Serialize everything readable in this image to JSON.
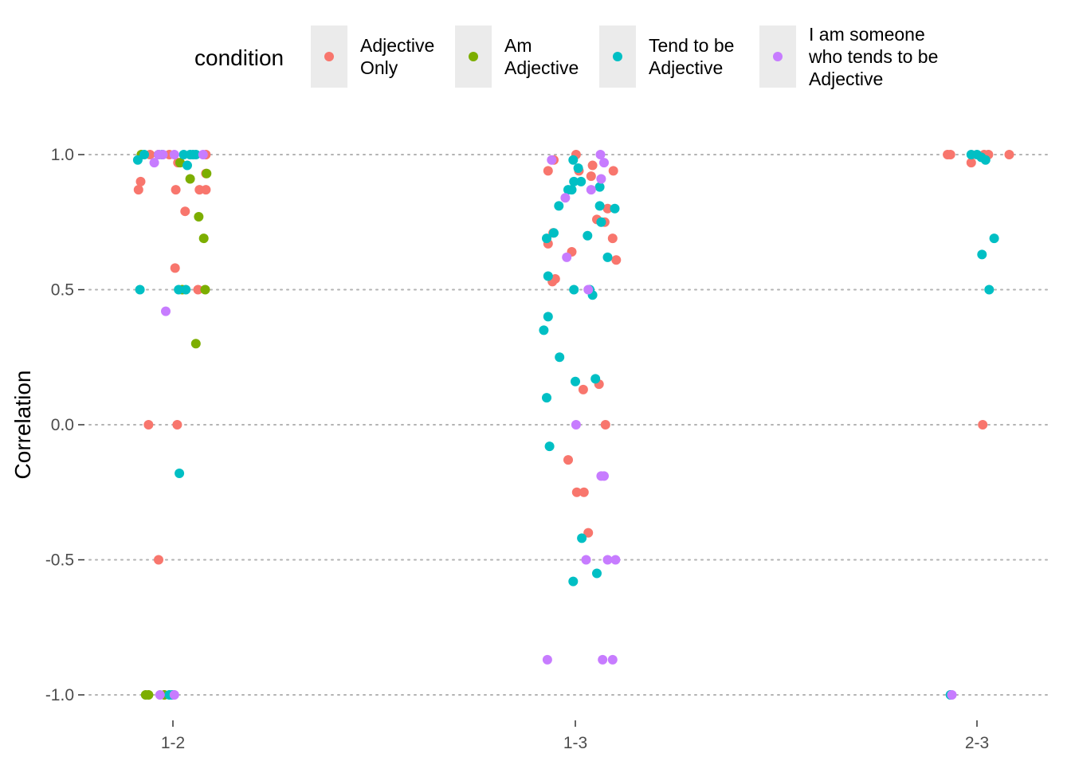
{
  "chart_data": {
    "type": "scatter",
    "jitter": true,
    "xlabel": "",
    "ylabel": "Correlation",
    "ylim": [
      -1.1,
      1.15
    ],
    "categories": [
      "1-2",
      "1-3",
      "2-3"
    ],
    "y_ticks": [
      -1.0,
      -0.5,
      0.0,
      0.5,
      1.0
    ],
    "y_tick_labels": [
      "-1.0",
      "-0.5",
      "0.0",
      "0.5",
      "1.0"
    ],
    "grid": "horizontal-dotted",
    "legend": {
      "title": "condition",
      "placement": "top",
      "items": [
        {
          "series": "Adjective Only",
          "lines": [
            "Adjective",
            "Only"
          ]
        },
        {
          "series": "Am Adjective",
          "lines": [
            "Am",
            "Adjective"
          ]
        },
        {
          "series": "Tend to be Adjective",
          "lines": [
            "Tend to be",
            "Adjective"
          ]
        },
        {
          "series": "I am someone who tends to be Adjective",
          "lines": [
            "I am someone",
            "who tends to be",
            "Adjective"
          ]
        }
      ]
    },
    "series": [
      {
        "name": "Adjective Only",
        "color": "#F8766D",
        "points": [
          [
            "1-2",
            -0.32,
            1.0
          ],
          [
            "1-2",
            -0.05,
            1.0
          ],
          [
            "1-2",
            0.46,
            1.0
          ],
          [
            "1-2",
            0.07,
            0.97
          ],
          [
            "1-2",
            -0.45,
            0.9
          ],
          [
            "1-2",
            -0.48,
            0.87
          ],
          [
            "1-2",
            0.04,
            0.87
          ],
          [
            "1-2",
            0.37,
            0.87
          ],
          [
            "1-2",
            0.46,
            0.87
          ],
          [
            "1-2",
            0.46,
            0.93
          ],
          [
            "1-2",
            0.17,
            0.79
          ],
          [
            "1-2",
            0.03,
            0.58
          ],
          [
            "1-2",
            0.35,
            0.5
          ],
          [
            "1-2",
            -0.34,
            0.0
          ],
          [
            "1-2",
            0.06,
            0.0
          ],
          [
            "1-2",
            -0.2,
            -0.5
          ],
          [
            "1-3",
            -0.38,
            0.94
          ],
          [
            "1-3",
            -0.3,
            0.98
          ],
          [
            "1-3",
            0.01,
            1.0
          ],
          [
            "1-3",
            0.05,
            0.94
          ],
          [
            "1-3",
            0.24,
            0.96
          ],
          [
            "1-3",
            0.22,
            0.92
          ],
          [
            "1-3",
            0.53,
            0.94
          ],
          [
            "1-3",
            -0.38,
            0.67
          ],
          [
            "1-3",
            -0.31,
            0.71
          ],
          [
            "1-3",
            -0.05,
            0.64
          ],
          [
            "1-3",
            0.3,
            0.76
          ],
          [
            "1-3",
            0.41,
            0.75
          ],
          [
            "1-3",
            0.45,
            0.8
          ],
          [
            "1-3",
            0.52,
            0.69
          ],
          [
            "1-3",
            0.57,
            0.61
          ],
          [
            "1-3",
            -0.32,
            0.53
          ],
          [
            "1-3",
            -0.28,
            0.54
          ],
          [
            "1-3",
            0.33,
            0.15
          ],
          [
            "1-3",
            0.11,
            0.13
          ],
          [
            "1-3",
            0.42,
            0.0
          ],
          [
            "1-3",
            -0.1,
            -0.13
          ],
          [
            "1-3",
            0.02,
            -0.25
          ],
          [
            "1-3",
            0.12,
            -0.25
          ],
          [
            "1-3",
            0.18,
            -0.4
          ],
          [
            "2-3",
            -0.41,
            1.0
          ],
          [
            "2-3",
            -0.37,
            1.0
          ],
          [
            "2-3",
            0.1,
            1.0
          ],
          [
            "2-3",
            0.16,
            1.0
          ],
          [
            "2-3",
            0.45,
            1.0
          ],
          [
            "2-3",
            -0.08,
            0.97
          ],
          [
            "2-3",
            0.08,
            0.0
          ]
        ]
      },
      {
        "name": "Am Adjective",
        "color": "#7CAE00",
        "points": [
          [
            "1-2",
            -0.44,
            1.0
          ],
          [
            "1-2",
            -0.2,
            1.0
          ],
          [
            "1-2",
            0.1,
            0.97
          ],
          [
            "1-2",
            0.24,
            0.91
          ],
          [
            "1-2",
            0.47,
            0.93
          ],
          [
            "1-2",
            0.36,
            0.77
          ],
          [
            "1-2",
            0.43,
            0.69
          ],
          [
            "1-2",
            0.13,
            0.5
          ],
          [
            "1-2",
            0.45,
            0.5
          ],
          [
            "1-2",
            0.32,
            0.3
          ],
          [
            "1-2",
            -0.34,
            -1.0
          ],
          [
            "1-2",
            -0.38,
            -1.0
          ],
          [
            "1-2",
            -0.12,
            -1.0
          ]
        ]
      },
      {
        "name": "Tend to be Adjective",
        "color": "#00BFC4",
        "points": [
          [
            "1-2",
            -0.49,
            0.98
          ],
          [
            "1-2",
            -0.4,
            1.0
          ],
          [
            "1-2",
            -0.15,
            1.0
          ],
          [
            "1-2",
            0.15,
            1.0
          ],
          [
            "1-2",
            0.24,
            1.0
          ],
          [
            "1-2",
            0.28,
            1.0
          ],
          [
            "1-2",
            0.32,
            1.0
          ],
          [
            "1-2",
            0.2,
            0.96
          ],
          [
            "1-2",
            -0.46,
            0.5
          ],
          [
            "1-2",
            0.08,
            0.5
          ],
          [
            "1-2",
            0.18,
            0.5
          ],
          [
            "1-2",
            0.09,
            -0.18
          ],
          [
            "1-2",
            -0.05,
            -1.0
          ],
          [
            "1-2",
            -0.01,
            -1.0
          ],
          [
            "1-3",
            -0.03,
            0.98
          ],
          [
            "1-3",
            0.04,
            0.95
          ],
          [
            "1-3",
            -0.02,
            0.9
          ],
          [
            "1-3",
            0.08,
            0.9
          ],
          [
            "1-3",
            -0.1,
            0.87
          ],
          [
            "1-3",
            -0.05,
            0.87
          ],
          [
            "1-3",
            0.34,
            0.88
          ],
          [
            "1-3",
            -0.23,
            0.81
          ],
          [
            "1-3",
            0.34,
            0.81
          ],
          [
            "1-3",
            0.55,
            0.8
          ],
          [
            "1-3",
            0.36,
            0.75
          ],
          [
            "1-3",
            -0.4,
            0.69
          ],
          [
            "1-3",
            -0.3,
            0.71
          ],
          [
            "1-3",
            0.17,
            0.7
          ],
          [
            "1-3",
            0.45,
            0.62
          ],
          [
            "1-3",
            -0.38,
            0.55
          ],
          [
            "1-3",
            -0.02,
            0.5
          ],
          [
            "1-3",
            0.2,
            0.5
          ],
          [
            "1-3",
            0.24,
            0.48
          ],
          [
            "1-3",
            -0.38,
            0.4
          ],
          [
            "1-3",
            -0.44,
            0.35
          ],
          [
            "1-3",
            -0.22,
            0.25
          ],
          [
            "1-3",
            -0.4,
            0.1
          ],
          [
            "1-3",
            0.0,
            0.16
          ],
          [
            "1-3",
            0.28,
            0.17
          ],
          [
            "1-3",
            -0.36,
            -0.08
          ],
          [
            "1-3",
            0.09,
            -0.42
          ],
          [
            "1-3",
            -0.03,
            -0.58
          ],
          [
            "1-3",
            0.3,
            -0.55
          ],
          [
            "2-3",
            -0.08,
            1.0
          ],
          [
            "2-3",
            0.0,
            1.0
          ],
          [
            "2-3",
            0.06,
            0.99
          ],
          [
            "2-3",
            0.12,
            0.98
          ],
          [
            "2-3",
            0.24,
            0.69
          ],
          [
            "2-3",
            0.07,
            0.63
          ],
          [
            "2-3",
            0.17,
            0.5
          ],
          [
            "2-3",
            -0.37,
            -1.0
          ]
        ]
      },
      {
        "name": "I am someone who tends to be Adjective",
        "color": "#C77CFF",
        "points": [
          [
            "1-2",
            -0.2,
            1.0
          ],
          [
            "1-2",
            -0.14,
            1.0
          ],
          [
            "1-2",
            0.02,
            1.0
          ],
          [
            "1-2",
            0.42,
            1.0
          ],
          [
            "1-2",
            -0.26,
            0.97
          ],
          [
            "1-2",
            -0.1,
            0.42
          ],
          [
            "1-2",
            -0.18,
            -1.0
          ],
          [
            "1-2",
            0.02,
            -1.0
          ],
          [
            "1-3",
            0.35,
            1.0
          ],
          [
            "1-3",
            -0.33,
            0.98
          ],
          [
            "1-3",
            0.4,
            0.97
          ],
          [
            "1-3",
            0.36,
            0.91
          ],
          [
            "1-3",
            0.22,
            0.87
          ],
          [
            "1-3",
            -0.14,
            0.84
          ],
          [
            "1-3",
            -0.12,
            0.62
          ],
          [
            "1-3",
            0.18,
            0.5
          ],
          [
            "1-3",
            0.01,
            0.0
          ],
          [
            "1-3",
            0.36,
            -0.19
          ],
          [
            "1-3",
            0.4,
            -0.19
          ],
          [
            "1-3",
            0.15,
            -0.5
          ],
          [
            "1-3",
            0.45,
            -0.5
          ],
          [
            "1-3",
            0.56,
            -0.5
          ],
          [
            "1-3",
            -0.39,
            -0.87
          ],
          [
            "1-3",
            0.38,
            -0.87
          ],
          [
            "1-3",
            0.52,
            -0.87
          ],
          [
            "2-3",
            -0.35,
            -1.0
          ]
        ]
      }
    ]
  }
}
